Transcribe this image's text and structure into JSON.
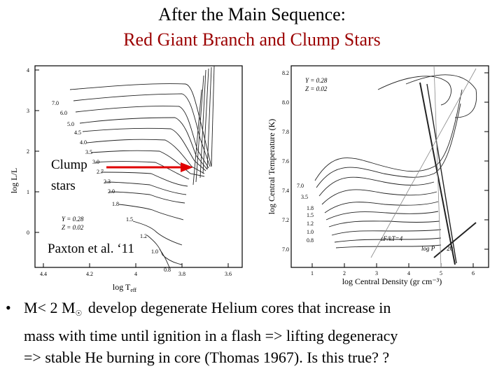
{
  "slide": {
    "title_line1": "After the Main Sequence:",
    "title_line2": "Red Giant Branch and Clump Stars"
  },
  "figure_left": {
    "x_label": "log T",
    "x_sub": "eff",
    "y_label": "log L/L",
    "x_ticks": [
      "4.4",
      "4.2",
      "4",
      "3.8",
      "3.6"
    ],
    "y_ticks": [
      "4",
      "3",
      "2",
      "1",
      "0"
    ],
    "track_labels": [
      "7.0",
      "6.0",
      "5.0",
      "4.5",
      "4.0",
      "3.5",
      "3.0",
      "2.7",
      "2.3",
      "2.0",
      "1.8",
      "1.5",
      "1.2",
      "1.0",
      "0.8"
    ],
    "composition_y": "Y = 0.28",
    "composition_z": "Z = 0.02",
    "annotation_clump_1": "Clump",
    "annotation_clump_2": "stars",
    "annotation_credit": "Paxton et al. ‘11"
  },
  "figure_right": {
    "x_label": "log Central Density (gr cm⁻³)",
    "y_label": "log Central Temperature (K)",
    "x_ticks": [
      "1",
      "2",
      "3",
      "4",
      "5",
      "6"
    ],
    "y_ticks": [
      "8.2",
      "8.0",
      "7.8",
      "7.6",
      "7.4",
      "7.2",
      "7.0"
    ],
    "composition_y": "Y = 0.28",
    "composition_z": "Z = 0.02",
    "track_labels": [
      "7.0",
      "3.5",
      "1.8",
      "1.5",
      "1.2",
      "1.0",
      "0.8"
    ],
    "label_ef": "εF/kT=4",
    "label_p": "log P",
    "label_p_value": "20"
  },
  "bullet": {
    "marker": "•",
    "line1_a": "M< 2 M",
    "sun_symbol": "☉",
    "line1_b": " develop degenerate Helium cores that increase in",
    "line2": "mass with time until ignition in a flash => lifting degeneracy",
    "line3": "=> stable He burning in core (Thomas 1967). Is this true? ?"
  },
  "colors": {
    "title_red": "#9b0000",
    "arrow_red": "#e00000"
  }
}
